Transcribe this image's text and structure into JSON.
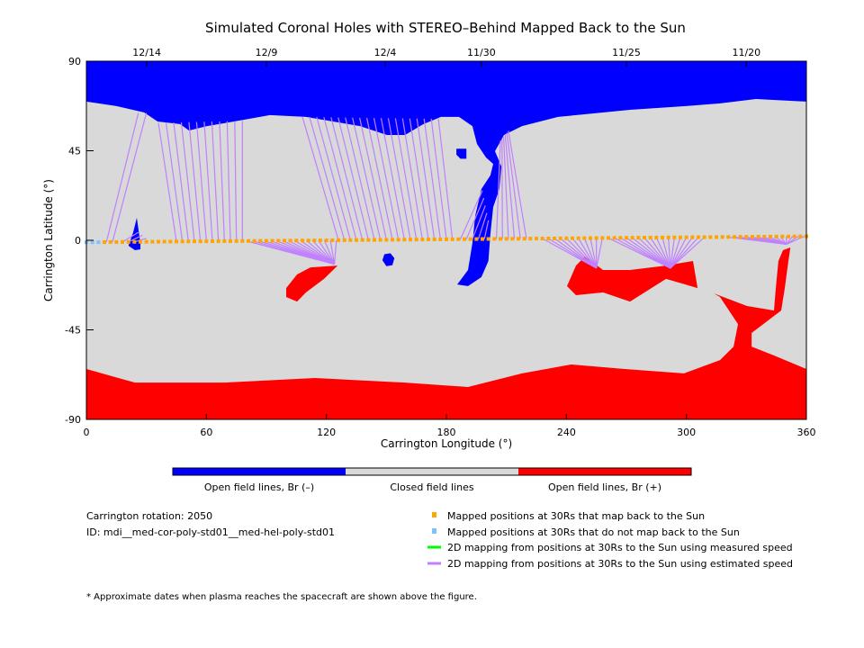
{
  "chart_data": {
    "type": "scatter",
    "title": "Simulated Coronal Holes with STEREO–Behind Mapped Back to the Sun",
    "xlabel": "Carrington Longitude (°)",
    "ylabel": "Carrington Latitude (°)",
    "xlim": [
      0,
      360
    ],
    "ylim": [
      -90,
      90
    ],
    "xticks": [
      "0",
      "60",
      "120",
      "180",
      "240",
      "300",
      "360"
    ],
    "yticks": [
      "90",
      "45",
      "0",
      "-45",
      "-90"
    ],
    "top_axis_dates": [
      {
        "label": "12/14",
        "lon": 30.2
      },
      {
        "label": "12/9",
        "lon": 90
      },
      {
        "label": "12/4",
        "lon": 149.4
      },
      {
        "label": "11/30",
        "lon": 197.5
      },
      {
        "label": "11/25",
        "lon": 270
      },
      {
        "label": "11/20",
        "lon": 330
      }
    ],
    "colors": {
      "open_negative": "#0000ff",
      "closed": "#d9d9d9",
      "open_positive": "#ff0000",
      "mapped": "#ffa500",
      "not_mapped": "#80c0ff",
      "measured": "#00ff00",
      "estimated": "#c080ff"
    },
    "regions": [
      {
        "polarity": "negative",
        "points": [
          [
            0,
            90
          ],
          [
            0,
            69.7
          ],
          [
            15.3,
            67.4
          ],
          [
            28.8,
            64.3
          ],
          [
            35.6,
            59.7
          ],
          [
            46.8,
            58.4
          ],
          [
            51.3,
            55.2
          ],
          [
            60.3,
            57.4
          ],
          [
            73.8,
            59.7
          ],
          [
            91.8,
            62.9
          ],
          [
            109.8,
            62
          ],
          [
            123.3,
            59.7
          ],
          [
            136.8,
            57.4
          ],
          [
            150.3,
            52.9
          ],
          [
            159.3,
            52.9
          ],
          [
            168.3,
            58.3
          ],
          [
            177.3,
            62
          ],
          [
            186.3,
            62
          ],
          [
            193,
            57.4
          ],
          [
            195.3,
            48.4
          ],
          [
            199.8,
            41.6
          ],
          [
            203.4,
            38.4
          ],
          [
            202,
            32.6
          ],
          [
            197.5,
            25.8
          ],
          [
            194.4,
            12.2
          ],
          [
            193,
            -1.4
          ],
          [
            190.8,
            -14.9
          ],
          [
            185.4,
            -22.2
          ],
          [
            190.8,
            -23
          ],
          [
            197.5,
            -18.5
          ],
          [
            201,
            -10.4
          ],
          [
            202,
            3.2
          ],
          [
            203.4,
            16.7
          ],
          [
            206.5,
            25.8
          ],
          [
            207.5,
            37.1
          ],
          [
            204.3,
            44.8
          ],
          [
            208.8,
            52.9
          ],
          [
            217.8,
            57.4
          ],
          [
            235.8,
            62
          ],
          [
            271.8,
            65.6
          ],
          [
            298.8,
            67.4
          ],
          [
            316.8,
            68.8
          ],
          [
            334.8,
            71
          ],
          [
            360,
            69.7
          ],
          [
            360,
            90
          ]
        ]
      },
      {
        "polarity": "negative",
        "points": [
          [
            185,
            46
          ],
          [
            190,
            46
          ],
          [
            190,
            41
          ],
          [
            187,
            41
          ],
          [
            185,
            43
          ]
        ]
      },
      {
        "polarity": "negative",
        "points": [
          [
            149,
            -7
          ],
          [
            152,
            -6.5
          ],
          [
            154,
            -9
          ],
          [
            153,
            -12.5
          ],
          [
            150,
            -13
          ],
          [
            148,
            -10
          ]
        ]
      },
      {
        "polarity": "negative",
        "points": [
          [
            25.2,
            11.3
          ],
          [
            27,
            -1.4
          ],
          [
            27,
            -4.5
          ],
          [
            24.3,
            -5
          ],
          [
            21,
            -2.7
          ],
          [
            23.4,
            4
          ]
        ]
      },
      {
        "polarity": "positive",
        "points": [
          [
            0,
            -90
          ],
          [
            0,
            -64.7
          ],
          [
            24.3,
            -71.5
          ],
          [
            69.3,
            -71.5
          ],
          [
            114.3,
            -69.2
          ],
          [
            159.3,
            -71.5
          ],
          [
            190.8,
            -73.7
          ],
          [
            217.8,
            -66.9
          ],
          [
            242.3,
            -62.4
          ],
          [
            269.1,
            -64.7
          ],
          [
            298.8,
            -66.9
          ],
          [
            316.8,
            -60.2
          ],
          [
            323.6,
            -53.4
          ],
          [
            325.8,
            -42.1
          ],
          [
            316.8,
            -28.5
          ],
          [
            313.7,
            -26.7
          ],
          [
            330.3,
            -33
          ],
          [
            343.8,
            -35.3
          ],
          [
            344.7,
            -24
          ],
          [
            346,
            -10.4
          ],
          [
            348.3,
            -5
          ],
          [
            352,
            -3.6
          ],
          [
            351,
            -10.4
          ],
          [
            349.2,
            -24
          ],
          [
            347.4,
            -35.3
          ],
          [
            332.6,
            -46.6
          ],
          [
            332.6,
            -53.4
          ],
          [
            343.8,
            -57.9
          ],
          [
            360,
            -64.7
          ],
          [
            360,
            -90
          ]
        ]
      },
      {
        "polarity": "positive",
        "points": [
          [
            99.9,
            -24
          ],
          [
            105.3,
            -17.2
          ],
          [
            112,
            -13.6
          ],
          [
            125.6,
            -12.7
          ],
          [
            118.8,
            -19.4
          ],
          [
            109.8,
            -26.2
          ],
          [
            105.3,
            -30.8
          ],
          [
            99.9,
            -28.5
          ]
        ]
      },
      {
        "polarity": "positive",
        "points": [
          [
            240.3,
            -23
          ],
          [
            244.8,
            -12.7
          ],
          [
            249.3,
            -8.1
          ],
          [
            258.3,
            -14.9
          ],
          [
            271.8,
            -14.9
          ],
          [
            289.8,
            -12.7
          ],
          [
            303.3,
            -10.4
          ],
          [
            305.6,
            -24
          ],
          [
            289.8,
            -19.4
          ],
          [
            271.8,
            -30.8
          ],
          [
            258.3,
            -26.2
          ],
          [
            244.8,
            -27.6
          ]
        ]
      }
    ],
    "mapped_track": {
      "lon_start": 0,
      "lat_start": -1,
      "lon_end": 360,
      "lat_end": 2,
      "step": 3,
      "not_mapped_until_lon": 6
    },
    "field_line_groups": [
      {
        "from": [
          10,
          13,
          3
        ],
        "to_lon": [
          26,
          30
        ],
        "to_lat": [
          64,
          64
        ]
      },
      {
        "from": [
          18,
          24,
          3
        ],
        "to_lon": [
          26,
          30
        ],
        "to_lat": [
          4,
          1
        ]
      },
      {
        "from": [
          45,
          78,
          3
        ],
        "to_lon": [
          36,
          78
        ],
        "to_lat": [
          59,
          60
        ]
      },
      {
        "from": [
          80,
          125,
          3
        ],
        "to_lon": [
          124,
          124
        ],
        "to_lat": [
          -12,
          -12
        ]
      },
      {
        "from": [
          126,
          184,
          3
        ],
        "to_lon": [
          108,
          176
        ],
        "to_lat": [
          62,
          61
        ]
      },
      {
        "from": [
          187,
          199,
          3
        ],
        "to_lon": [
          198,
          201
        ],
        "to_lat": [
          25,
          10
        ]
      },
      {
        "from": [
          205,
          220,
          3
        ],
        "to_lon": [
          207,
          211
        ],
        "to_lat": [
          50,
          55
        ]
      },
      {
        "from": [
          228,
          258,
          3
        ],
        "to_lon": [
          255,
          255
        ],
        "to_lat": [
          -14,
          -14
        ]
      },
      {
        "from": [
          261,
          310,
          3
        ],
        "to_lon": [
          292,
          292
        ],
        "to_lat": [
          -14,
          -14
        ]
      },
      {
        "from": [
          320,
          360,
          3
        ],
        "to_lon": [
          350,
          350
        ],
        "to_lat": [
          -2,
          -2
        ]
      }
    ]
  },
  "colorbar": {
    "labels": [
      "Open field lines, Br (–)",
      "Closed field lines",
      "Open field lines, Br (+)"
    ]
  },
  "info": {
    "rotation": "Carrington rotation: 2050",
    "id": "ID: mdi__med-cor-poly-std01__med-hel-poly-std01"
  },
  "legend": [
    {
      "label": "Mapped positions at 30Rs that map back to the Sun",
      "kind": "square",
      "color": "#ffa500"
    },
    {
      "label": "Mapped positions at 30Rs that do not map back to the Sun",
      "kind": "square",
      "color": "#80c0ff"
    },
    {
      "label": "2D mapping from positions at 30Rs to the Sun using measured speed",
      "kind": "line",
      "color": "#00ff00"
    },
    {
      "label": "2D mapping from positions at 30Rs to the Sun using estimated speed",
      "kind": "line",
      "color": "#c080ff"
    }
  ],
  "footnote": "* Approximate dates when plasma reaches the spacecraft are shown above the figure."
}
